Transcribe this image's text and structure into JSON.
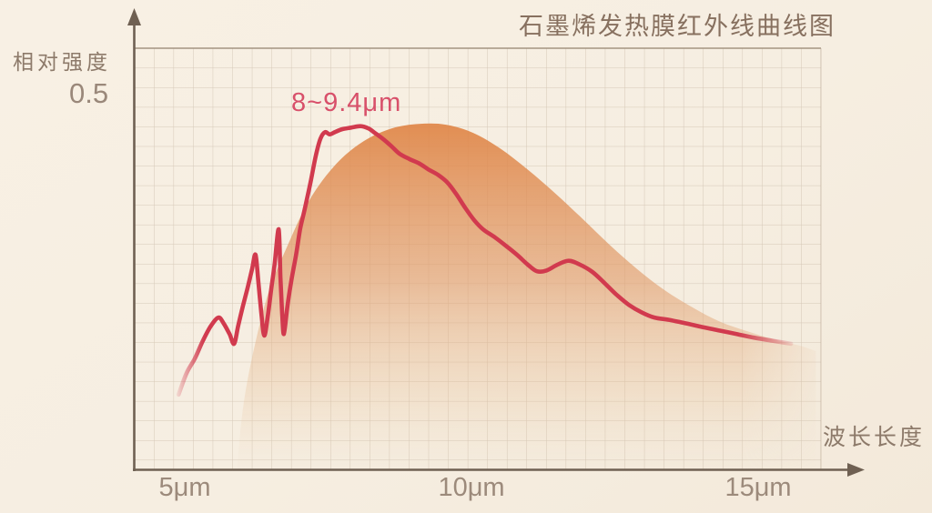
{
  "title": "石墨烯发热膜红外线曲线图",
  "y_axis": {
    "label": "相对强度",
    "tick": "0.5"
  },
  "x_axis": {
    "label": "波长长度",
    "ticks": [
      "5μm",
      "10μm",
      "15μm"
    ]
  },
  "annotation": "8~9.4μm",
  "colors": {
    "background": "#f6eee1",
    "grid_line": "#b9a794",
    "grid_top_border": "#9d8c79",
    "axis": "#6f6052",
    "title_text": "#87705f",
    "tick_text": "#9c8a7b",
    "curve_red": "#d13a4e",
    "annotation_red": "#d8506a",
    "envelope_orange": "#df8445"
  },
  "chart_data": {
    "type": "area",
    "title": "石墨烯发热膜红外线曲线图",
    "xlabel": "波长长度",
    "ylabel": "相对强度",
    "x_unit": "μm",
    "x_ticks": [
      5,
      10,
      15
    ],
    "y_ticks": [
      0.5
    ],
    "xlim": [
      4.2,
      16.8
    ],
    "ylim": [
      0,
      0.56
    ],
    "grid": true,
    "legend_position": "none",
    "annotation": {
      "text": "8~9.4μm",
      "peak_range_um": [
        8,
        9.4
      ]
    },
    "series": [
      {
        "name": "infrared-intensity-curve",
        "type": "line",
        "color": "#d13a4e",
        "points": [
          [
            4.94,
            0.1
          ],
          [
            5.08,
            0.129
          ],
          [
            5.22,
            0.148
          ],
          [
            5.36,
            0.172
          ],
          [
            5.5,
            0.192
          ],
          [
            5.63,
            0.203
          ],
          [
            5.72,
            0.195
          ],
          [
            5.82,
            0.181
          ],
          [
            5.9,
            0.168
          ],
          [
            5.97,
            0.192
          ],
          [
            6.05,
            0.218
          ],
          [
            6.13,
            0.242
          ],
          [
            6.21,
            0.268
          ],
          [
            6.27,
            0.287
          ],
          [
            6.32,
            0.249
          ],
          [
            6.37,
            0.209
          ],
          [
            6.42,
            0.179
          ],
          [
            6.48,
            0.204
          ],
          [
            6.54,
            0.24
          ],
          [
            6.6,
            0.275
          ],
          [
            6.67,
            0.321
          ],
          [
            6.7,
            0.257
          ],
          [
            6.73,
            0.208
          ],
          [
            6.76,
            0.181
          ],
          [
            6.82,
            0.218
          ],
          [
            6.89,
            0.253
          ],
          [
            6.97,
            0.287
          ],
          [
            7.04,
            0.321
          ],
          [
            7.12,
            0.348
          ],
          [
            7.22,
            0.384
          ],
          [
            7.31,
            0.419
          ],
          [
            7.39,
            0.442
          ],
          [
            7.47,
            0.451
          ],
          [
            7.55,
            0.448
          ],
          [
            7.64,
            0.451
          ],
          [
            7.77,
            0.455
          ],
          [
            7.92,
            0.457
          ],
          [
            8.08,
            0.459
          ],
          [
            8.22,
            0.456
          ],
          [
            8.33,
            0.45
          ],
          [
            8.47,
            0.442
          ],
          [
            8.62,
            0.432
          ],
          [
            8.76,
            0.422
          ],
          [
            8.93,
            0.415
          ],
          [
            9.1,
            0.409
          ],
          [
            9.26,
            0.401
          ],
          [
            9.42,
            0.394
          ],
          [
            9.58,
            0.384
          ],
          [
            9.73,
            0.369
          ],
          [
            9.89,
            0.35
          ],
          [
            10.05,
            0.333
          ],
          [
            10.2,
            0.321
          ],
          [
            10.41,
            0.31
          ],
          [
            10.61,
            0.298
          ],
          [
            10.8,
            0.286
          ],
          [
            10.97,
            0.274
          ],
          [
            11.13,
            0.265
          ],
          [
            11.3,
            0.266
          ],
          [
            11.49,
            0.274
          ],
          [
            11.68,
            0.279
          ],
          [
            11.87,
            0.274
          ],
          [
            12.09,
            0.264
          ],
          [
            12.3,
            0.249
          ],
          [
            12.5,
            0.234
          ],
          [
            12.72,
            0.22
          ],
          [
            12.94,
            0.21
          ],
          [
            13.16,
            0.203
          ],
          [
            13.41,
            0.2
          ],
          [
            13.66,
            0.196
          ],
          [
            13.95,
            0.191
          ],
          [
            14.26,
            0.186
          ],
          [
            14.58,
            0.181
          ],
          [
            14.89,
            0.176
          ],
          [
            15.2,
            0.172
          ],
          [
            15.52,
            0.168
          ]
        ]
      },
      {
        "name": "radiation-envelope-area",
        "type": "area",
        "color": "#df8445",
        "points": [
          [
            5.95,
            0.0
          ],
          [
            6.05,
            0.08
          ],
          [
            6.22,
            0.153
          ],
          [
            6.49,
            0.236
          ],
          [
            6.81,
            0.297
          ],
          [
            7.2,
            0.36
          ],
          [
            7.67,
            0.409
          ],
          [
            8.14,
            0.439
          ],
          [
            8.62,
            0.456
          ],
          [
            9.09,
            0.462
          ],
          [
            9.56,
            0.461
          ],
          [
            10.03,
            0.45
          ],
          [
            10.5,
            0.429
          ],
          [
            10.97,
            0.401
          ],
          [
            11.45,
            0.369
          ],
          [
            11.92,
            0.335
          ],
          [
            12.39,
            0.3
          ],
          [
            12.86,
            0.268
          ],
          [
            13.33,
            0.24
          ],
          [
            13.81,
            0.217
          ],
          [
            14.28,
            0.198
          ],
          [
            14.75,
            0.185
          ],
          [
            15.22,
            0.174
          ],
          [
            15.69,
            0.165
          ],
          [
            15.95,
            0.158
          ]
        ]
      }
    ]
  }
}
